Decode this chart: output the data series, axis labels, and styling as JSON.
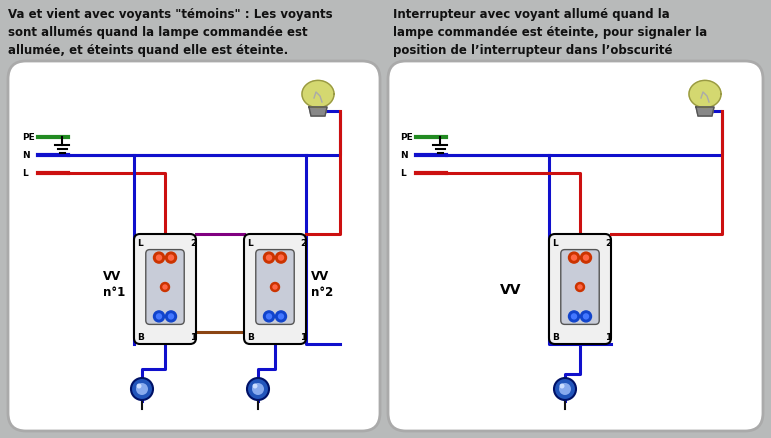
{
  "bg_color": "#b8baba",
  "panel_bg": "#ffffff",
  "text_color": "#1a1a1a",
  "title_left_lines": [
    "Va et vient avec voyants \"témoins\" : Les voyants",
    "sont allumés quand la lampe commandée est",
    "allumée, et éteints quand elle est éteinte."
  ],
  "title_right_lines": [
    "Interrupteur avec voyant allumé quand la",
    "lampe commandée est éteinte, pour signaler la",
    "position de l’interrupteur dans l’obscurité"
  ],
  "wire_green": "#228B22",
  "wire_blue": "#1010cc",
  "wire_red": "#cc1010",
  "wire_brown": "#8B4513",
  "wire_purple": "#800080",
  "wire_black": "#111111",
  "lw": 2.2
}
